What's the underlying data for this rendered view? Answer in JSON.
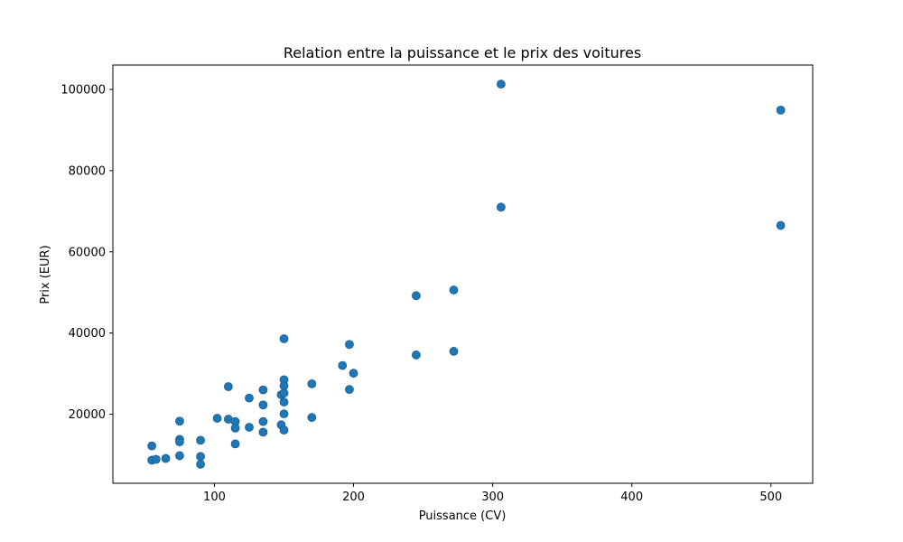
{
  "chart_data": {
    "type": "scatter",
    "title": "Relation entre la puissance et le prix des voitures",
    "xlabel": "Puissance (CV)",
    "ylabel": "Prix (EUR)",
    "xlim": [
      27,
      530
    ],
    "ylim": [
      3000,
      106000
    ],
    "x_ticks": [
      100,
      200,
      300,
      400,
      500
    ],
    "y_ticks": [
      20000,
      40000,
      60000,
      80000,
      100000
    ],
    "x_tick_labels": [
      "100",
      "200",
      "300",
      "400",
      "500"
    ],
    "y_tick_labels": [
      "20000",
      "40000",
      "60000",
      "80000",
      "100000"
    ],
    "grid": false,
    "marker_color": "#1f77b4",
    "series": [
      {
        "points": [
          [
            55,
            12200
          ],
          [
            55,
            8700
          ],
          [
            58,
            8900
          ],
          [
            65,
            9100
          ],
          [
            75,
            18300
          ],
          [
            75,
            13800
          ],
          [
            75,
            13200
          ],
          [
            75,
            9800
          ],
          [
            90,
            13600
          ],
          [
            90,
            9600
          ],
          [
            90,
            7700
          ],
          [
            102,
            19000
          ],
          [
            110,
            26800
          ],
          [
            110,
            18800
          ],
          [
            115,
            18200
          ],
          [
            115,
            16600
          ],
          [
            115,
            12700
          ],
          [
            125,
            24000
          ],
          [
            125,
            16800
          ],
          [
            135,
            26000
          ],
          [
            135,
            22300
          ],
          [
            135,
            18200
          ],
          [
            135,
            15600
          ],
          [
            148,
            24800
          ],
          [
            148,
            17400
          ],
          [
            150,
            38600
          ],
          [
            150,
            28500
          ],
          [
            150,
            27000
          ],
          [
            150,
            25200
          ],
          [
            150,
            23000
          ],
          [
            150,
            20100
          ],
          [
            150,
            16100
          ],
          [
            170,
            27500
          ],
          [
            170,
            19200
          ],
          [
            192,
            32000
          ],
          [
            197,
            37200
          ],
          [
            197,
            26100
          ],
          [
            200,
            30100
          ],
          [
            245,
            49200
          ],
          [
            245,
            34600
          ],
          [
            272,
            50600
          ],
          [
            272,
            35500
          ],
          [
            306,
            101300
          ],
          [
            306,
            71000
          ],
          [
            507,
            94900
          ],
          [
            507,
            66500
          ]
        ]
      }
    ]
  }
}
